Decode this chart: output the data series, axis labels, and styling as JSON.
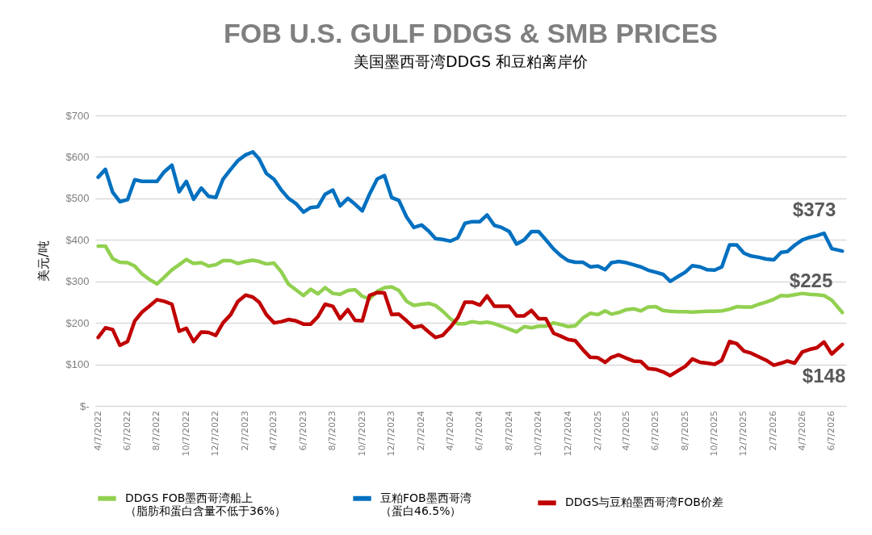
{
  "chart_data": {
    "type": "line",
    "title": "FOB U.S. GULF DDGS & SMB PRICES",
    "subtitle": "美国墨西哥湾DDGS 和豆粕离岸价",
    "ylabel": "美元/吨",
    "x": [
      "2022-04-07",
      "2022-04-22",
      "2022-05-07",
      "2022-05-22",
      "2022-06-07",
      "2022-06-22",
      "2022-07-07",
      "2022-07-22",
      "2022-08-07",
      "2022-08-22",
      "2022-09-07",
      "2022-09-22",
      "2022-10-07",
      "2022-10-22",
      "2022-11-07",
      "2022-11-22",
      "2022-12-07",
      "2022-12-22",
      "2023-01-07",
      "2023-01-22",
      "2023-02-07",
      "2023-02-22",
      "2023-03-07",
      "2023-03-22",
      "2023-04-07",
      "2023-04-22",
      "2023-05-07",
      "2023-05-22",
      "2023-06-07",
      "2023-06-22",
      "2023-07-07",
      "2023-07-22",
      "2023-08-07",
      "2023-08-22",
      "2023-09-07",
      "2023-09-22",
      "2023-10-07",
      "2023-10-22",
      "2023-11-07",
      "2023-11-22",
      "2023-12-07",
      "2023-12-22",
      "2024-01-07",
      "2024-01-22",
      "2024-02-07",
      "2024-02-22",
      "2024-03-07",
      "2024-03-22",
      "2024-04-07",
      "2024-04-22",
      "2024-05-07",
      "2024-05-22",
      "2024-06-07",
      "2024-06-22",
      "2024-07-07",
      "2024-07-22",
      "2024-08-07",
      "2024-08-22",
      "2024-09-07",
      "2024-09-22",
      "2024-10-07",
      "2024-10-22",
      "2024-11-07",
      "2024-11-22",
      "2024-12-07",
      "2024-12-22",
      "2025-01-07",
      "2025-01-22",
      "2025-02-07",
      "2025-02-22",
      "2025-03-07",
      "2025-03-22",
      "2025-04-07",
      "2025-04-22",
      "2025-05-07",
      "2025-05-22",
      "2025-06-07",
      "2025-06-22",
      "2025-07-07",
      "2025-07-22",
      "2025-08-07",
      "2025-08-22",
      "2025-09-07",
      "2025-09-22",
      "2025-10-07",
      "2025-10-22",
      "2025-11-07",
      "2025-11-22",
      "2025-12-07",
      "2025-12-22",
      "2026-01-07",
      "2026-01-22",
      "2026-02-07",
      "2026-02-22",
      "2026-03-07",
      "2026-03-22",
      "2026-04-07",
      "2026-04-22",
      "2026-05-07",
      "2026-05-22",
      "2026-06-07",
      "2026-06-29"
    ],
    "series": [
      {
        "name": "DDGS FOB墨西哥湾船上（脂肪和蛋白含量不低于36%）",
        "color": "#92d050",
        "values": [
          385,
          385,
          355,
          346,
          345,
          337,
          318,
          305,
          294,
          310,
          328,
          340,
          353,
          343,
          345,
          337,
          340,
          350,
          350,
          343,
          348,
          351,
          348,
          342,
          344,
          323,
          293,
          280,
          266,
          281,
          270,
          285,
          271,
          269,
          278,
          280,
          264,
          258,
          276,
          285,
          287,
          278,
          252,
          242,
          245,
          247,
          242,
          228,
          210,
          198,
          198,
          203,
          200,
          202,
          198,
          192,
          185,
          178,
          191,
          188,
          192,
          192,
          200,
          196,
          191,
          193,
          212,
          223,
          220,
          229,
          221,
          225,
          232,
          234,
          229,
          238,
          239,
          230,
          228,
          227,
          227,
          226,
          227,
          228,
          228,
          229,
          233,
          239,
          238,
          238,
          245,
          250,
          257,
          266,
          265,
          268,
          271,
          269,
          268,
          266,
          255,
          225
        ]
      },
      {
        "name": "豆粕FOB墨西哥湾（蛋白46.5%）",
        "color": "#0070c0",
        "values": [
          551,
          570,
          515,
          492,
          497,
          545,
          541,
          541,
          541,
          564,
          580,
          516,
          541,
          498,
          525,
          505,
          502,
          546,
          570,
          591,
          605,
          612,
          595,
          560,
          546,
          520,
          500,
          488,
          467,
          478,
          480,
          510,
          520,
          482,
          500,
          486,
          470,
          510,
          547,
          555,
          502,
          495,
          455,
          430,
          436,
          421,
          403,
          401,
          397,
          405,
          440,
          444,
          444,
          460,
          435,
          430,
          420,
          390,
          400,
          420,
          420,
          400,
          378,
          362,
          350,
          346,
          346,
          335,
          337,
          328,
          345,
          348,
          345,
          340,
          335,
          327,
          322,
          317,
          300,
          311,
          322,
          338,
          335,
          328,
          327,
          335,
          388,
          388,
          368,
          361,
          358,
          354,
          352,
          370,
          372,
          387,
          400,
          406,
          410,
          416,
          379,
          373
        ]
      },
      {
        "name": "DDGS与豆粕墨西哥湾FOB价差",
        "color": "#c00000",
        "values": [
          165,
          188,
          184,
          146,
          155,
          205,
          226,
          240,
          256,
          252,
          245,
          180,
          187,
          155,
          178,
          177,
          170,
          200,
          220,
          252,
          267,
          262,
          250,
          220,
          200,
          203,
          208,
          205,
          197,
          197,
          215,
          245,
          240,
          210,
          232,
          206,
          205,
          266,
          273,
          272,
          220,
          221,
          205,
          189,
          193,
          178,
          165,
          170,
          190,
          212,
          250,
          250,
          243,
          265,
          240,
          240,
          240,
          217,
          217,
          230,
          210,
          210,
          175,
          168,
          160,
          157,
          135,
          117,
          116,
          105,
          117,
          123,
          115,
          108,
          107,
          90,
          88,
          82,
          73,
          84,
          95,
          113,
          105,
          103,
          100,
          110,
          155,
          150,
          132,
          127,
          118,
          110,
          98,
          103,
          108,
          103,
          130,
          136,
          140,
          154,
          125,
          148
        ]
      }
    ],
    "xlim": [
      "2022-04-01",
      "2026-07-07"
    ],
    "xticks": [
      {
        "value": "2022-04-07",
        "label": "4/7/2022"
      },
      {
        "value": "2022-06-07",
        "label": "6/7/2022"
      },
      {
        "value": "2022-08-07",
        "label": "8/7/2022"
      },
      {
        "value": "2022-10-07",
        "label": "10/7/2022"
      },
      {
        "value": "2022-12-07",
        "label": "12/7/2022"
      },
      {
        "value": "2023-02-07",
        "label": "2/7/2023"
      },
      {
        "value": "2023-04-07",
        "label": "4/7/2023"
      },
      {
        "value": "2023-06-07",
        "label": "6/7/2023"
      },
      {
        "value": "2023-08-07",
        "label": "8/7/2023"
      },
      {
        "value": "2023-10-07",
        "label": "10/7/2023"
      },
      {
        "value": "2023-12-07",
        "label": "12/7/2023"
      },
      {
        "value": "2024-02-07",
        "label": "2/7/2024"
      },
      {
        "value": "2024-04-07",
        "label": "4/7/2024"
      },
      {
        "value": "2024-06-07",
        "label": "6/7/2024"
      },
      {
        "value": "2024-08-07",
        "label": "8/7/2024"
      },
      {
        "value": "2024-10-07",
        "label": "10/7/2024"
      },
      {
        "value": "2024-12-07",
        "label": "12/7/2024"
      },
      {
        "value": "2025-02-07",
        "label": "2/7/2025"
      },
      {
        "value": "2025-04-07",
        "label": "4/7/2025"
      },
      {
        "value": "2025-06-07",
        "label": "6/7/2025"
      },
      {
        "value": "2025-08-07",
        "label": "8/7/2025"
      },
      {
        "value": "2025-10-07",
        "label": "10/7/2025"
      },
      {
        "value": "2025-12-07",
        "label": "12/7/2025"
      },
      {
        "value": "2026-02-07",
        "label": "2/7/2026"
      },
      {
        "value": "2026-04-07",
        "label": "4/7/2026"
      },
      {
        "value": "2026-06-07",
        "label": "6/7/2026"
      }
    ],
    "ylim": [
      0,
      700
    ],
    "yticks": [
      {
        "value": 0,
        "label": "$-"
      },
      {
        "value": 100,
        "label": "$100"
      },
      {
        "value": 200,
        "label": "$200"
      },
      {
        "value": 300,
        "label": "$300"
      },
      {
        "value": 400,
        "label": "$400"
      },
      {
        "value": 500,
        "label": "$500"
      },
      {
        "value": 600,
        "label": "$600"
      },
      {
        "value": 700,
        "label": "$700"
      }
    ],
    "grid": "y",
    "legend": "bottom",
    "marker": "none",
    "line_style": "solid",
    "annotations": [
      {
        "text": "$373",
        "x": "2026-06-29",
        "y": 373
      },
      {
        "text": "$225",
        "x": "2026-06-29",
        "y": 225
      },
      {
        "text": "$148",
        "x": "2026-06-29",
        "y": 148
      }
    ]
  }
}
